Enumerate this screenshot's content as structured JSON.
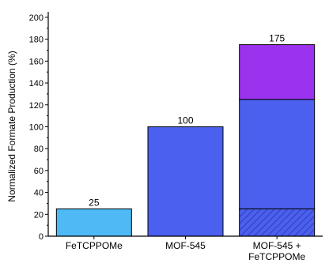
{
  "chart_data": {
    "type": "bar",
    "stacked": true,
    "ylabel": "Normalized Formate Production (%)",
    "ylim": [
      0,
      205
    ],
    "yticks": [
      0,
      20,
      40,
      60,
      80,
      100,
      120,
      140,
      160,
      180,
      200
    ],
    "categories": [
      [
        "FeTCPPOMe"
      ],
      [
        "MOF-545"
      ],
      [
        "MOF-545 +",
        "FeTCPPOMe"
      ]
    ],
    "bars": [
      {
        "segments": [
          {
            "value": 25,
            "color": "#4fb9f5",
            "pattern": "none"
          }
        ],
        "label": "25"
      },
      {
        "segments": [
          {
            "value": 100,
            "color": "#4b60ee",
            "pattern": "none"
          }
        ],
        "label": "100"
      },
      {
        "segments": [
          {
            "value": 25,
            "color": "#4b60ee",
            "pattern": "hatch"
          },
          {
            "value": 100,
            "color": "#4b60ee",
            "pattern": "none"
          },
          {
            "value": 50,
            "color": "#9b32ee",
            "pattern": "none"
          }
        ],
        "label": "175"
      }
    ]
  }
}
